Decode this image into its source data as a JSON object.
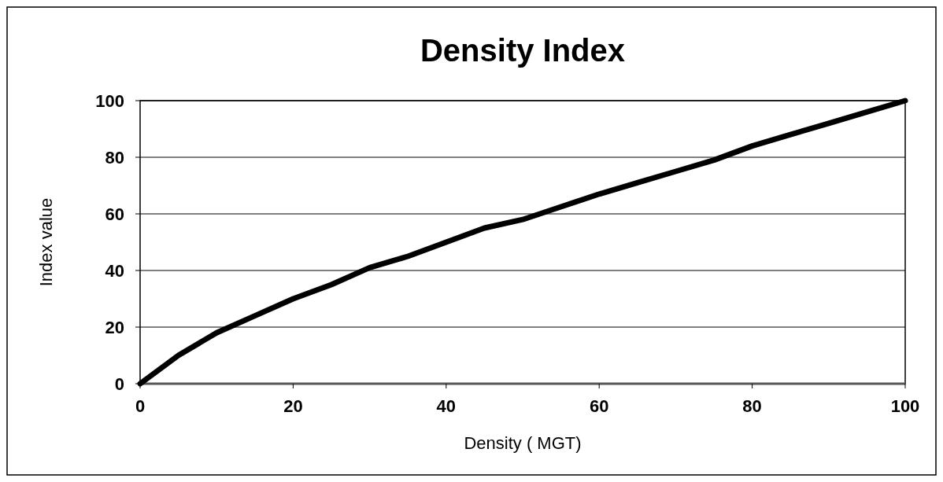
{
  "chart_data": {
    "type": "line",
    "title": "Density Index",
    "xlabel": "Density ( MGT)",
    "ylabel": "Index value",
    "x": [
      0,
      5,
      10,
      15,
      20,
      25,
      30,
      35,
      40,
      45,
      50,
      55,
      60,
      65,
      70,
      75,
      80,
      85,
      90,
      95,
      100
    ],
    "series": [
      {
        "color": "#000000",
        "values": [
          0,
          10,
          18,
          24,
          30,
          35,
          41,
          45,
          50,
          55,
          58,
          62.5,
          67,
          71,
          75,
          79,
          84,
          88,
          92,
          96,
          100
        ]
      }
    ],
    "xlim": [
      0,
      100
    ],
    "xticks": [
      0,
      20,
      40,
      60,
      80,
      100
    ],
    "ylim": [
      0,
      100
    ],
    "yticks": [
      0,
      20,
      40,
      60,
      80,
      100
    ],
    "grid": "y",
    "marker": "none",
    "line_style": "solid"
  }
}
